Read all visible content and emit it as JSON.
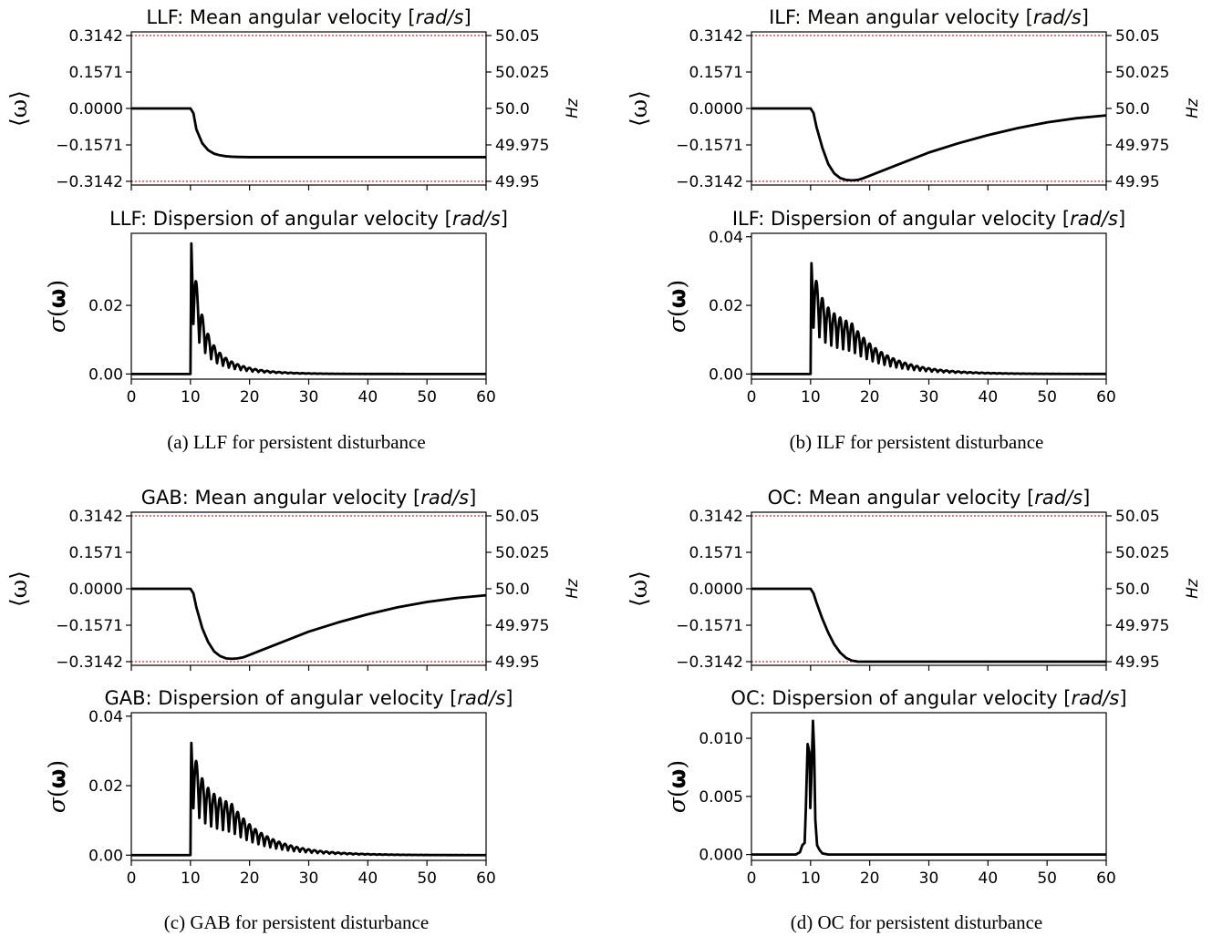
{
  "chart_data": [
    {
      "id": "a",
      "type": "line",
      "caption": "(a) LLF for persistent disturbance",
      "mean": {
        "title": "LLF: Mean angular velocity [rad/s]",
        "title_plain": "LLF: Mean angular velocity [",
        "title_unit": "rad/s",
        "title_close": "]",
        "ylabel": "⟨ω⟩",
        "ylabel_right": "Hz",
        "xlim": [
          0,
          60
        ],
        "ylim": [
          -0.33,
          0.33
        ],
        "yticks": [
          0.3142,
          0.1571,
          0.0,
          -0.1571,
          -0.3142
        ],
        "yticklabels": [
          "0.3142",
          "0.1571",
          "0.0000",
          "−0.1571",
          "−0.3142"
        ],
        "yticklabels_right": [
          "50.05",
          "50.025",
          "50.0",
          "49.975",
          "49.95"
        ],
        "show_xticklabels": false,
        "hlines": [
          0.3142,
          -0.3142
        ],
        "series": [
          {
            "x": [
              0,
              10,
              10.5,
              11,
              12,
              13,
              14,
              15,
              16,
              17,
              18,
              20,
              25,
              30,
              40,
              50,
              60
            ],
            "y": [
              0,
              0,
              -0.02,
              -0.09,
              -0.15,
              -0.18,
              -0.195,
              -0.202,
              -0.206,
              -0.208,
              -0.209,
              -0.21,
              -0.21,
              -0.21,
              -0.21,
              -0.21,
              -0.21
            ]
          }
        ]
      },
      "dispersion": {
        "title": "LLF: Dispersion of angular velocity [rad/s]",
        "title_plain": "LLF: Dispersion of angular velocity [",
        "title_unit": "rad/s",
        "title_close": "]",
        "ylabel": "σ(ω)",
        "xlim": [
          0,
          60
        ],
        "ylim": [
          -0.0015,
          0.041
        ],
        "yticks": [
          0.0,
          0.02
        ],
        "yticklabels": [
          "0.00",
          "0.02"
        ],
        "xticks": [
          0,
          10,
          20,
          30,
          40,
          50,
          60
        ],
        "xticklabels": [
          "0",
          "10",
          "20",
          "30",
          "40",
          "50",
          "60"
        ],
        "envelope": {
          "t0": 10,
          "peak": 0.038,
          "decay": 0.0,
          "midpoint": 0,
          "tail": 4.5,
          "osc": 1.0
        }
      }
    },
    {
      "id": "b",
      "type": "line",
      "caption": "(b) ILF for persistent disturbance",
      "mean": {
        "title": "ILF: Mean angular velocity [rad/s]",
        "title_plain": "ILF: Mean angular velocity [",
        "title_unit": "rad/s",
        "title_close": "]",
        "ylabel": "⟨ω⟩",
        "ylabel_right": "Hz",
        "xlim": [
          0,
          60
        ],
        "ylim": [
          -0.33,
          0.33
        ],
        "yticks": [
          0.3142,
          0.1571,
          0.0,
          -0.1571,
          -0.3142
        ],
        "yticklabels": [
          "0.3142",
          "0.1571",
          "0.0000",
          "−0.1571",
          "−0.3142"
        ],
        "yticklabels_right": [
          "50.05",
          "50.025",
          "50.0",
          "49.975",
          "49.95"
        ],
        "show_xticklabels": false,
        "hlines": [
          0.3142,
          -0.3142
        ],
        "series": [
          {
            "x": [
              0,
              10,
              10.5,
              11,
              12,
              13,
              14,
              15,
              16,
              17,
              18,
              19,
              20,
              22,
              25,
              30,
              35,
              40,
              45,
              50,
              55,
              60
            ],
            "y": [
              0,
              0,
              -0.02,
              -0.08,
              -0.17,
              -0.24,
              -0.28,
              -0.3,
              -0.308,
              -0.31,
              -0.308,
              -0.3,
              -0.29,
              -0.27,
              -0.24,
              -0.19,
              -0.15,
              -0.115,
              -0.085,
              -0.06,
              -0.042,
              -0.03
            ]
          }
        ]
      },
      "dispersion": {
        "title": "ILF: Dispersion of angular velocity [rad/s]",
        "title_plain": "ILF: Dispersion of angular velocity [",
        "title_unit": "rad/s",
        "title_close": "]",
        "ylabel": "σ(ω)",
        "xlim": [
          0,
          60
        ],
        "ylim": [
          -0.0015,
          0.041
        ],
        "yticks": [
          0.0,
          0.02,
          0.04
        ],
        "yticklabels": [
          "0.00",
          "0.02",
          "0.04"
        ],
        "xticks": [
          0,
          10,
          20,
          30,
          40,
          50,
          60
        ],
        "xticklabels": [
          "0",
          "10",
          "20",
          "30",
          "40",
          "50",
          "60"
        ],
        "envelope": {
          "t0": 10,
          "peak": 0.039,
          "decay": 0.016,
          "midpoint": 20,
          "tail": 6,
          "osc": 1.0
        }
      }
    },
    {
      "id": "c",
      "type": "line",
      "caption": "(c) GAB for persistent disturbance",
      "mean": {
        "title": "GAB: Mean angular velocity [rad/s]",
        "title_plain": "GAB: Mean angular velocity [",
        "title_unit": "rad/s",
        "title_close": "]",
        "ylabel": "⟨ω⟩",
        "ylabel_right": "Hz",
        "xlim": [
          0,
          60
        ],
        "ylim": [
          -0.33,
          0.33
        ],
        "yticks": [
          0.3142,
          0.1571,
          0.0,
          -0.1571,
          -0.3142
        ],
        "yticklabels": [
          "0.3142",
          "0.1571",
          "0.0000",
          "−0.1571",
          "−0.3142"
        ],
        "yticklabels_right": [
          "50.05",
          "50.025",
          "50.0",
          "49.975",
          "49.95"
        ],
        "show_xticklabels": false,
        "hlines": [
          0.3142,
          -0.3142
        ],
        "series": [
          {
            "x": [
              0,
              10,
              10.5,
              11,
              12,
              13,
              14,
              15,
              16,
              17,
              18,
              19,
              20,
              22,
              25,
              30,
              35,
              40,
              45,
              50,
              55,
              60
            ],
            "y": [
              0,
              0,
              -0.02,
              -0.08,
              -0.17,
              -0.23,
              -0.27,
              -0.29,
              -0.3,
              -0.302,
              -0.3,
              -0.295,
              -0.285,
              -0.265,
              -0.235,
              -0.185,
              -0.145,
              -0.11,
              -0.08,
              -0.057,
              -0.04,
              -0.028
            ]
          }
        ]
      },
      "dispersion": {
        "title": "GAB: Dispersion of angular velocity [rad/s]",
        "title_plain": "GAB: Dispersion of angular velocity [",
        "title_unit": "rad/s",
        "title_close": "]",
        "ylabel": "σ(ω)",
        "xlim": [
          0,
          60
        ],
        "ylim": [
          -0.0015,
          0.041
        ],
        "yticks": [
          0.0,
          0.02,
          0.04
        ],
        "yticklabels": [
          "0.00",
          "0.02",
          "0.04"
        ],
        "xticks": [
          0,
          10,
          20,
          30,
          40,
          50,
          60
        ],
        "xticklabels": [
          "0",
          "10",
          "20",
          "30",
          "40",
          "50",
          "60"
        ],
        "envelope": {
          "t0": 10,
          "peak": 0.039,
          "decay": 0.016,
          "midpoint": 20,
          "tail": 6,
          "osc": 1.0
        }
      }
    },
    {
      "id": "d",
      "type": "line",
      "caption": "(d) OC for persistent disturbance",
      "mean": {
        "title": "OC: Mean angular velocity [rad/s]",
        "title_plain": "OC: Mean angular velocity [",
        "title_unit": "rad/s",
        "title_close": "]",
        "ylabel": "⟨ω⟩",
        "ylabel_right": "Hz",
        "xlim": [
          0,
          60
        ],
        "ylim": [
          -0.33,
          0.33
        ],
        "yticks": [
          0.3142,
          0.1571,
          0.0,
          -0.1571,
          -0.3142
        ],
        "yticklabels": [
          "0.3142",
          "0.1571",
          "0.0000",
          "−0.1571",
          "−0.3142"
        ],
        "yticklabels_right": [
          "50.05",
          "50.025",
          "50.0",
          "49.975",
          "49.95"
        ],
        "show_xticklabels": false,
        "hlines": [
          0.3142,
          -0.3142
        ],
        "series": [
          {
            "x": [
              0,
              10,
              10.5,
              11,
              12,
              13,
              14,
              15,
              16,
              17,
              18,
              19,
              20,
              25,
              30,
              40,
              50,
              60
            ],
            "y": [
              0,
              0,
              -0.02,
              -0.06,
              -0.13,
              -0.19,
              -0.24,
              -0.275,
              -0.298,
              -0.31,
              -0.314,
              -0.3142,
              -0.3142,
              -0.3142,
              -0.3142,
              -0.3142,
              -0.3142,
              -0.3142
            ]
          }
        ]
      },
      "dispersion": {
        "title": "OC: Dispersion of angular velocity [rad/s]",
        "title_plain": "OC: Dispersion of angular velocity [",
        "title_unit": "rad/s",
        "title_close": "]",
        "ylabel": "σ(ω)",
        "xlim": [
          0,
          60
        ],
        "ylim": [
          -0.0005,
          0.0122
        ],
        "yticks": [
          0.0,
          0.005,
          0.01
        ],
        "yticklabels": [
          "0.000",
          "0.005",
          "0.010"
        ],
        "xticks": [
          0,
          10,
          20,
          30,
          40,
          50,
          60
        ],
        "xticklabels": [
          "0",
          "10",
          "20",
          "30",
          "40",
          "50",
          "60"
        ],
        "series": [
          {
            "x": [
              0,
              7.5,
              8.2,
              8.6,
              9.0,
              9.2,
              9.5,
              9.8,
              9.95,
              10.1,
              10.4,
              10.6,
              10.8,
              11.1,
              11.5,
              12.0,
              13,
              20,
              60
            ],
            "y": [
              0,
              0,
              0.0002,
              0.0008,
              0.001,
              0.004,
              0.0095,
              0.0088,
              0.004,
              0.006,
              0.0115,
              0.009,
              0.003,
              0.0008,
              0.0004,
              0.0001,
              0,
              0,
              0
            ]
          }
        ]
      }
    }
  ]
}
